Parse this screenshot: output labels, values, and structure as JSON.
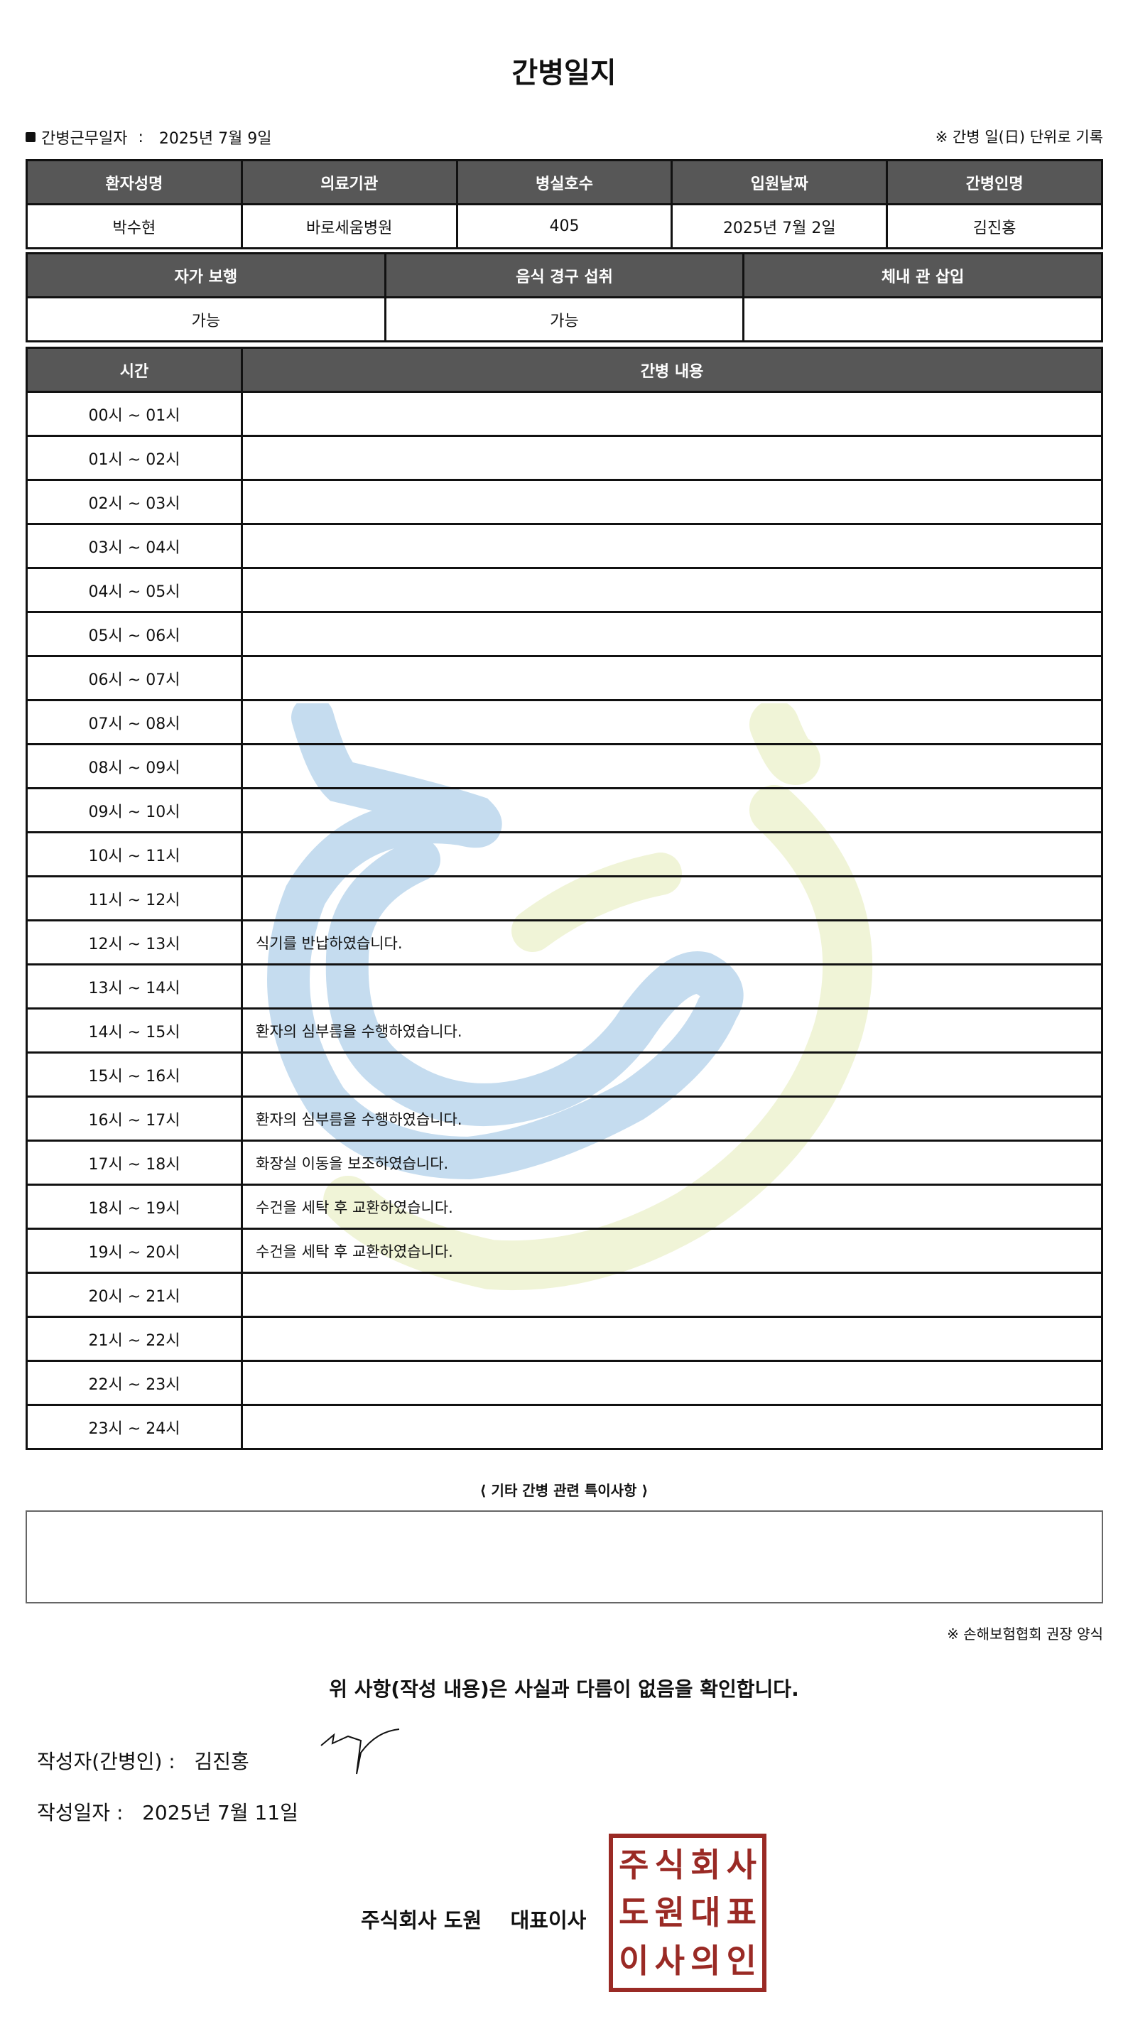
{
  "title": "간병일지",
  "info": {
    "work_date_label": "간병근무일자",
    "work_date": "2025년 7월 9일",
    "note": "※ 간병 일(日) 단위로 기록"
  },
  "patient": {
    "headers": [
      "환자성명",
      "의료기관",
      "병실호수",
      "입원날짜",
      "간병인명"
    ],
    "values": [
      "박수현",
      "바로세움병원",
      "405",
      "2025년 7월 2일",
      "김진홍"
    ]
  },
  "status": {
    "headers": [
      "자가 보행",
      "음식 경구 섭취",
      "체내 관 삽입"
    ],
    "values": [
      "가능",
      "가능",
      ""
    ]
  },
  "log": {
    "headers": [
      "시간",
      "간병 내용"
    ],
    "rows": [
      [
        "00시 ~ 01시",
        ""
      ],
      [
        "01시 ~ 02시",
        ""
      ],
      [
        "02시 ~ 03시",
        ""
      ],
      [
        "03시 ~ 04시",
        ""
      ],
      [
        "04시 ~ 05시",
        ""
      ],
      [
        "05시 ~ 06시",
        ""
      ],
      [
        "06시 ~ 07시",
        ""
      ],
      [
        "07시 ~ 08시",
        ""
      ],
      [
        "08시 ~ 09시",
        ""
      ],
      [
        "09시 ~ 10시",
        ""
      ],
      [
        "10시 ~ 11시",
        ""
      ],
      [
        "11시 ~ 12시",
        ""
      ],
      [
        "12시 ~ 13시",
        "식기를 반납하였습니다."
      ],
      [
        "13시 ~ 14시",
        ""
      ],
      [
        "14시 ~ 15시",
        "환자의 심부름을 수행하였습니다."
      ],
      [
        "15시 ~ 16시",
        ""
      ],
      [
        "16시 ~ 17시",
        "환자의 심부름을 수행하였습니다."
      ],
      [
        "17시 ~ 18시",
        "화장실 이동을 보조하였습니다."
      ],
      [
        "18시 ~ 19시",
        "수건을 세탁 후 교환하였습니다."
      ],
      [
        "19시 ~ 20시",
        "수건을 세탁 후 교환하였습니다."
      ],
      [
        "20시 ~ 21시",
        ""
      ],
      [
        "21시 ~ 22시",
        ""
      ],
      [
        "22시 ~ 23시",
        ""
      ],
      [
        "23시 ~ 24시",
        ""
      ]
    ]
  },
  "special_notes": {
    "title": "⟨ 기타 간병 관련 특이사항 ⟩",
    "content": ""
  },
  "source_note": "※ 손해보험협회 권장 양식",
  "confirmation": "위 사항(작성 내용)은 사실과 다름이 없음을 확인합니다.",
  "author": {
    "label": "작성자(간병인) :",
    "name": "김진홍"
  },
  "written_date": {
    "label": "작성일자 :",
    "value": "2025년 7월 11일"
  },
  "company": {
    "name": "주식회사 도원",
    "title": "대표이사"
  },
  "stamp_text": "주식회사도원대표이사의인",
  "colors": {
    "header_bg": "#575757",
    "stamp": "#9a2a25",
    "watermark_blue": "#7fb3dc",
    "watermark_green": "#dfe8a8"
  }
}
